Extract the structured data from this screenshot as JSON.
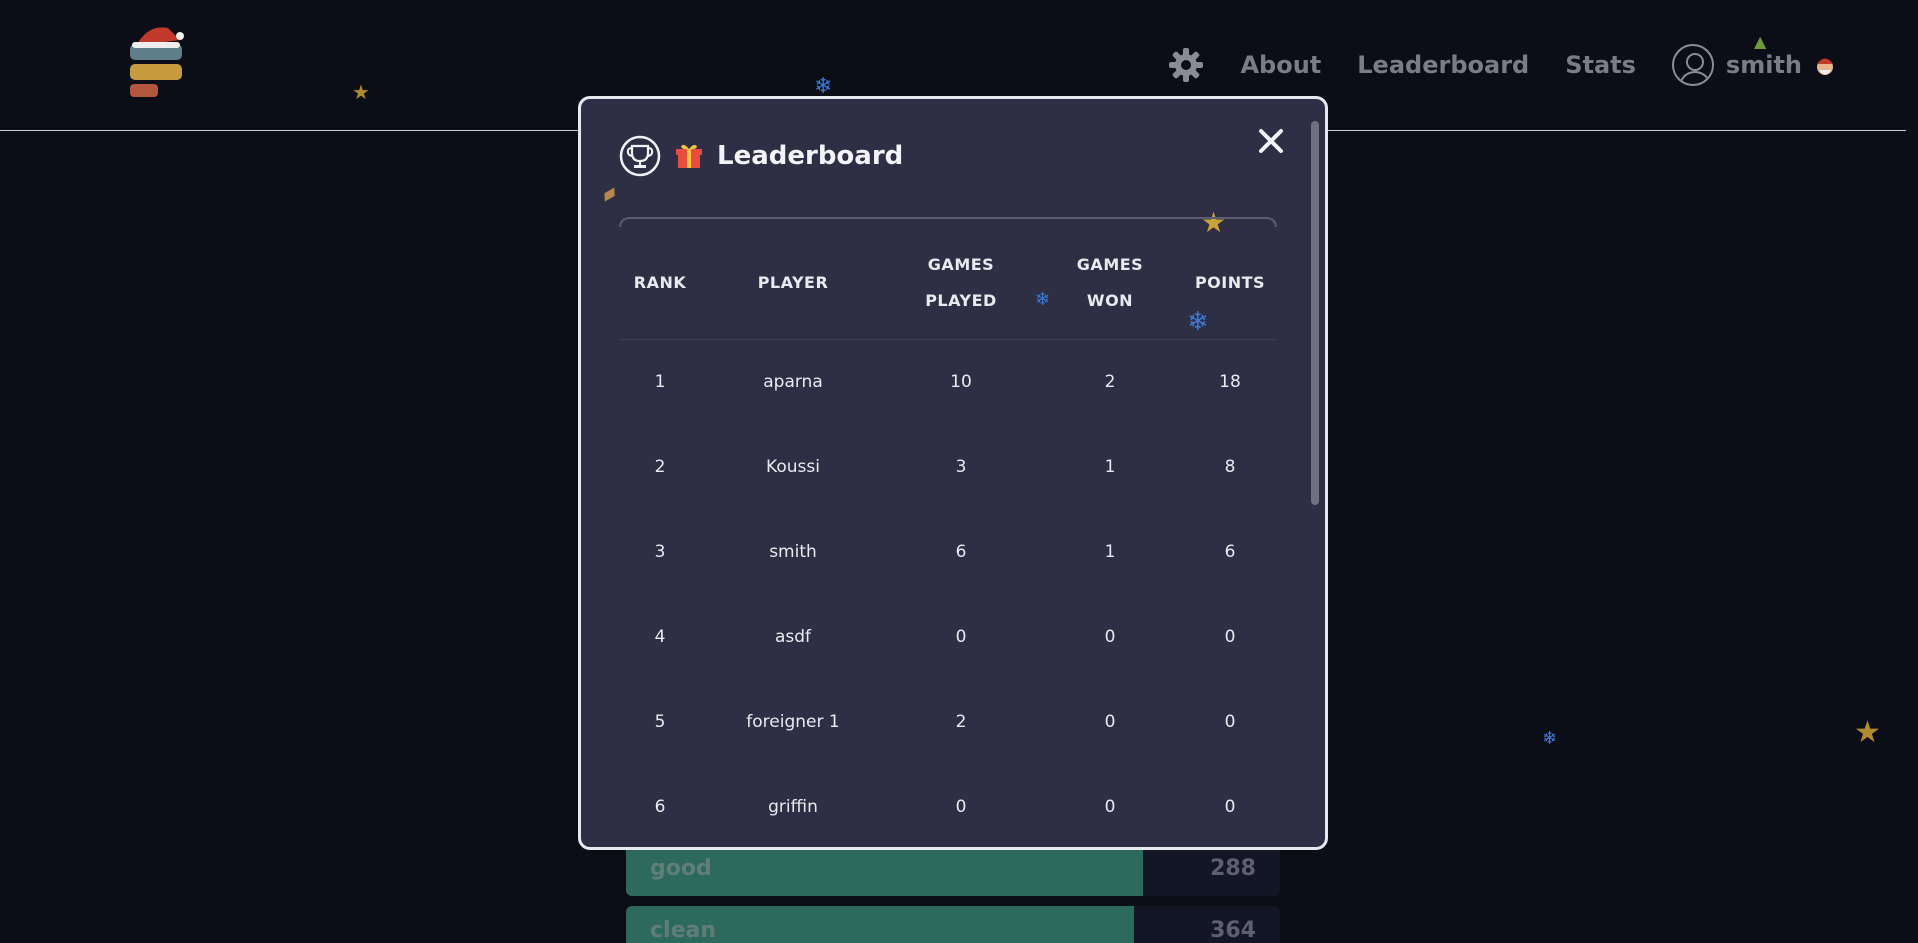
{
  "nav": {
    "items": [
      "About",
      "Leaderboard",
      "Stats"
    ],
    "username": "smith"
  },
  "background_words": [
    {
      "word": "good",
      "count": "288",
      "fill": 0.79
    },
    {
      "word": "clean",
      "count": "364",
      "fill": 0.78
    }
  ],
  "modal": {
    "title": "Leaderboard",
    "columns": {
      "rank": "RANK",
      "player": "PLAYER",
      "games_played_1": "GAMES",
      "games_played_2": "PLAYED",
      "games_won_1": "GAMES",
      "games_won_2": "WON",
      "points": "POINTS"
    },
    "rows": [
      {
        "rank": "1",
        "player": "aparna",
        "played": "10",
        "won": "2",
        "points": "18"
      },
      {
        "rank": "2",
        "player": "Koussi",
        "played": "3",
        "won": "1",
        "points": "8"
      },
      {
        "rank": "3",
        "player": "smith",
        "played": "6",
        "won": "1",
        "points": "6"
      },
      {
        "rank": "4",
        "player": "asdf",
        "played": "0",
        "won": "0",
        "points": "0"
      },
      {
        "rank": "5",
        "player": "foreigner 1",
        "played": "2",
        "won": "0",
        "points": "0"
      },
      {
        "rank": "6",
        "player": "griffin",
        "played": "0",
        "won": "0",
        "points": "0"
      }
    ]
  },
  "colors": {
    "background": "#0b0d17",
    "modal": "#2e2f45",
    "word_fill": "#2e6a5c"
  }
}
